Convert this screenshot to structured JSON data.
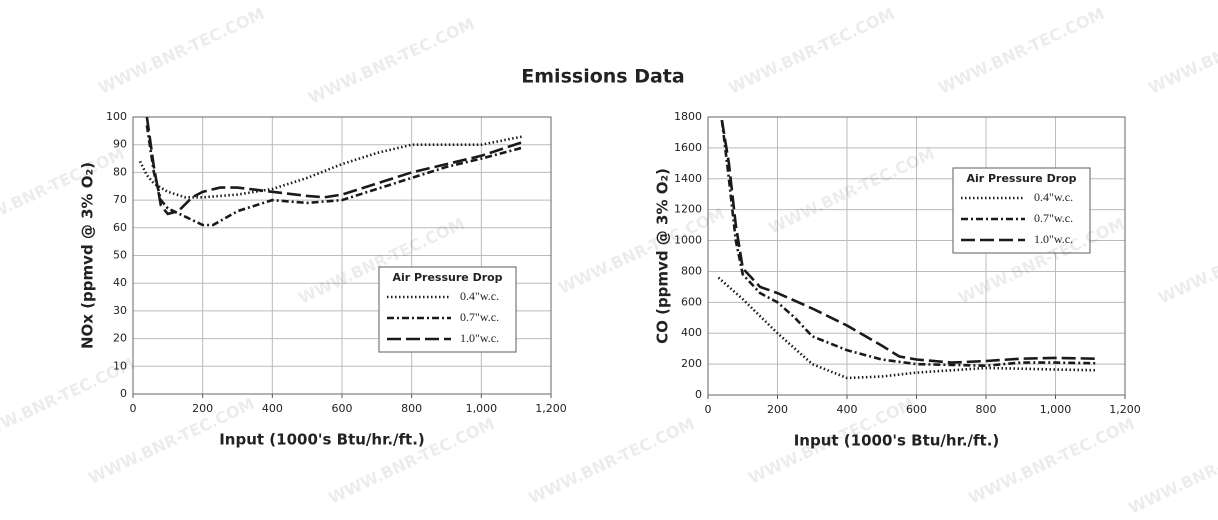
{
  "title": "Emissions Data",
  "watermark": "WWW.BNR-TEC.COM",
  "chart_data": [
    {
      "type": "line",
      "xlabel": "Input (1000's Btu/hr./ft.)",
      "ylabel": "NOx (ppmvd @ 3% O₂)",
      "xlim": [
        0,
        1200
      ],
      "ylim": [
        0,
        100
      ],
      "xticks": [
        0,
        200,
        400,
        600,
        800,
        {
          "value": 1000,
          "label": "1,000"
        },
        {
          "value": 1200,
          "label": "1,200"
        }
      ],
      "yticks": [
        0,
        10,
        20,
        30,
        40,
        50,
        60,
        70,
        80,
        90,
        100
      ],
      "grid": true,
      "legend_title": "Air Pressure Drop",
      "legend": "lower right",
      "series": [
        {
          "name": "0.4\"w.c.",
          "color": "#1a1a1a",
          "style": "dotted",
          "x": [
            20,
            40,
            60,
            100,
            150,
            200,
            300,
            400,
            500,
            600,
            700,
            800,
            900,
            1000,
            1120
          ],
          "values": [
            84,
            79,
            76,
            73,
            71,
            71,
            72,
            74,
            78,
            83,
            87,
            90,
            90,
            90,
            93
          ]
        },
        {
          "name": "0.7\"w.c.",
          "color": "#1a1a1a",
          "style": "dash-dot",
          "x": [
            40,
            60,
            80,
            100,
            150,
            200,
            230,
            300,
            400,
            500,
            600,
            700,
            800,
            900,
            1000,
            1120
          ],
          "values": [
            97,
            80,
            70,
            67,
            64,
            61,
            61,
            66,
            70,
            69,
            70,
            74,
            78,
            82,
            85,
            89
          ]
        },
        {
          "name": "1.0\"w.c.",
          "color": "#1a1a1a",
          "style": "long-dash",
          "x": [
            40,
            60,
            80,
            100,
            130,
            170,
            200,
            250,
            300,
            400,
            500,
            550,
            600,
            700,
            800,
            900,
            1000,
            1120
          ],
          "values": [
            100,
            82,
            68,
            65,
            66,
            71,
            73,
            74.5,
            74.5,
            73,
            71.5,
            71,
            72,
            76,
            80,
            83,
            86,
            91
          ]
        }
      ]
    },
    {
      "type": "line",
      "xlabel": "Input (1000's Btu/hr./ft.)",
      "ylabel": "CO (ppmvd @ 3% O₂)",
      "xlim": [
        0,
        1200
      ],
      "ylim": [
        0,
        1800
      ],
      "xticks": [
        0,
        200,
        400,
        600,
        800,
        {
          "value": 1000,
          "label": "1,000"
        },
        {
          "value": 1200,
          "label": "1,200"
        }
      ],
      "yticks": [
        0,
        200,
        400,
        600,
        800,
        1000,
        1200,
        1400,
        1600,
        1800
      ],
      "grid": true,
      "legend_title": "Air Pressure Drop",
      "legend": "upper right",
      "series": [
        {
          "name": "0.4\"w.c.",
          "color": "#1a1a1a",
          "style": "dotted",
          "x": [
            30,
            100,
            200,
            300,
            400,
            500,
            600,
            700,
            800,
            900,
            1000,
            1120
          ],
          "values": [
            760,
            620,
            400,
            200,
            110,
            120,
            145,
            160,
            175,
            170,
            165,
            160
          ]
        },
        {
          "name": "0.7\"w.c.",
          "color": "#1a1a1a",
          "style": "dash-dot",
          "x": [
            40,
            60,
            80,
            100,
            150,
            200,
            250,
            300,
            400,
            500,
            600,
            700,
            800,
            900,
            1000,
            1120
          ],
          "values": [
            1780,
            1400,
            1000,
            780,
            660,
            600,
            500,
            380,
            290,
            230,
            200,
            195,
            190,
            210,
            210,
            205
          ]
        },
        {
          "name": "1.0\"w.c.",
          "color": "#1a1a1a",
          "style": "long-dash",
          "x": [
            40,
            60,
            80,
            100,
            150,
            200,
            300,
            400,
            500,
            550,
            600,
            700,
            800,
            900,
            1000,
            1120
          ],
          "values": [
            1780,
            1500,
            1100,
            820,
            700,
            660,
            560,
            450,
            320,
            250,
            230,
            210,
            220,
            235,
            240,
            235
          ]
        }
      ]
    }
  ]
}
